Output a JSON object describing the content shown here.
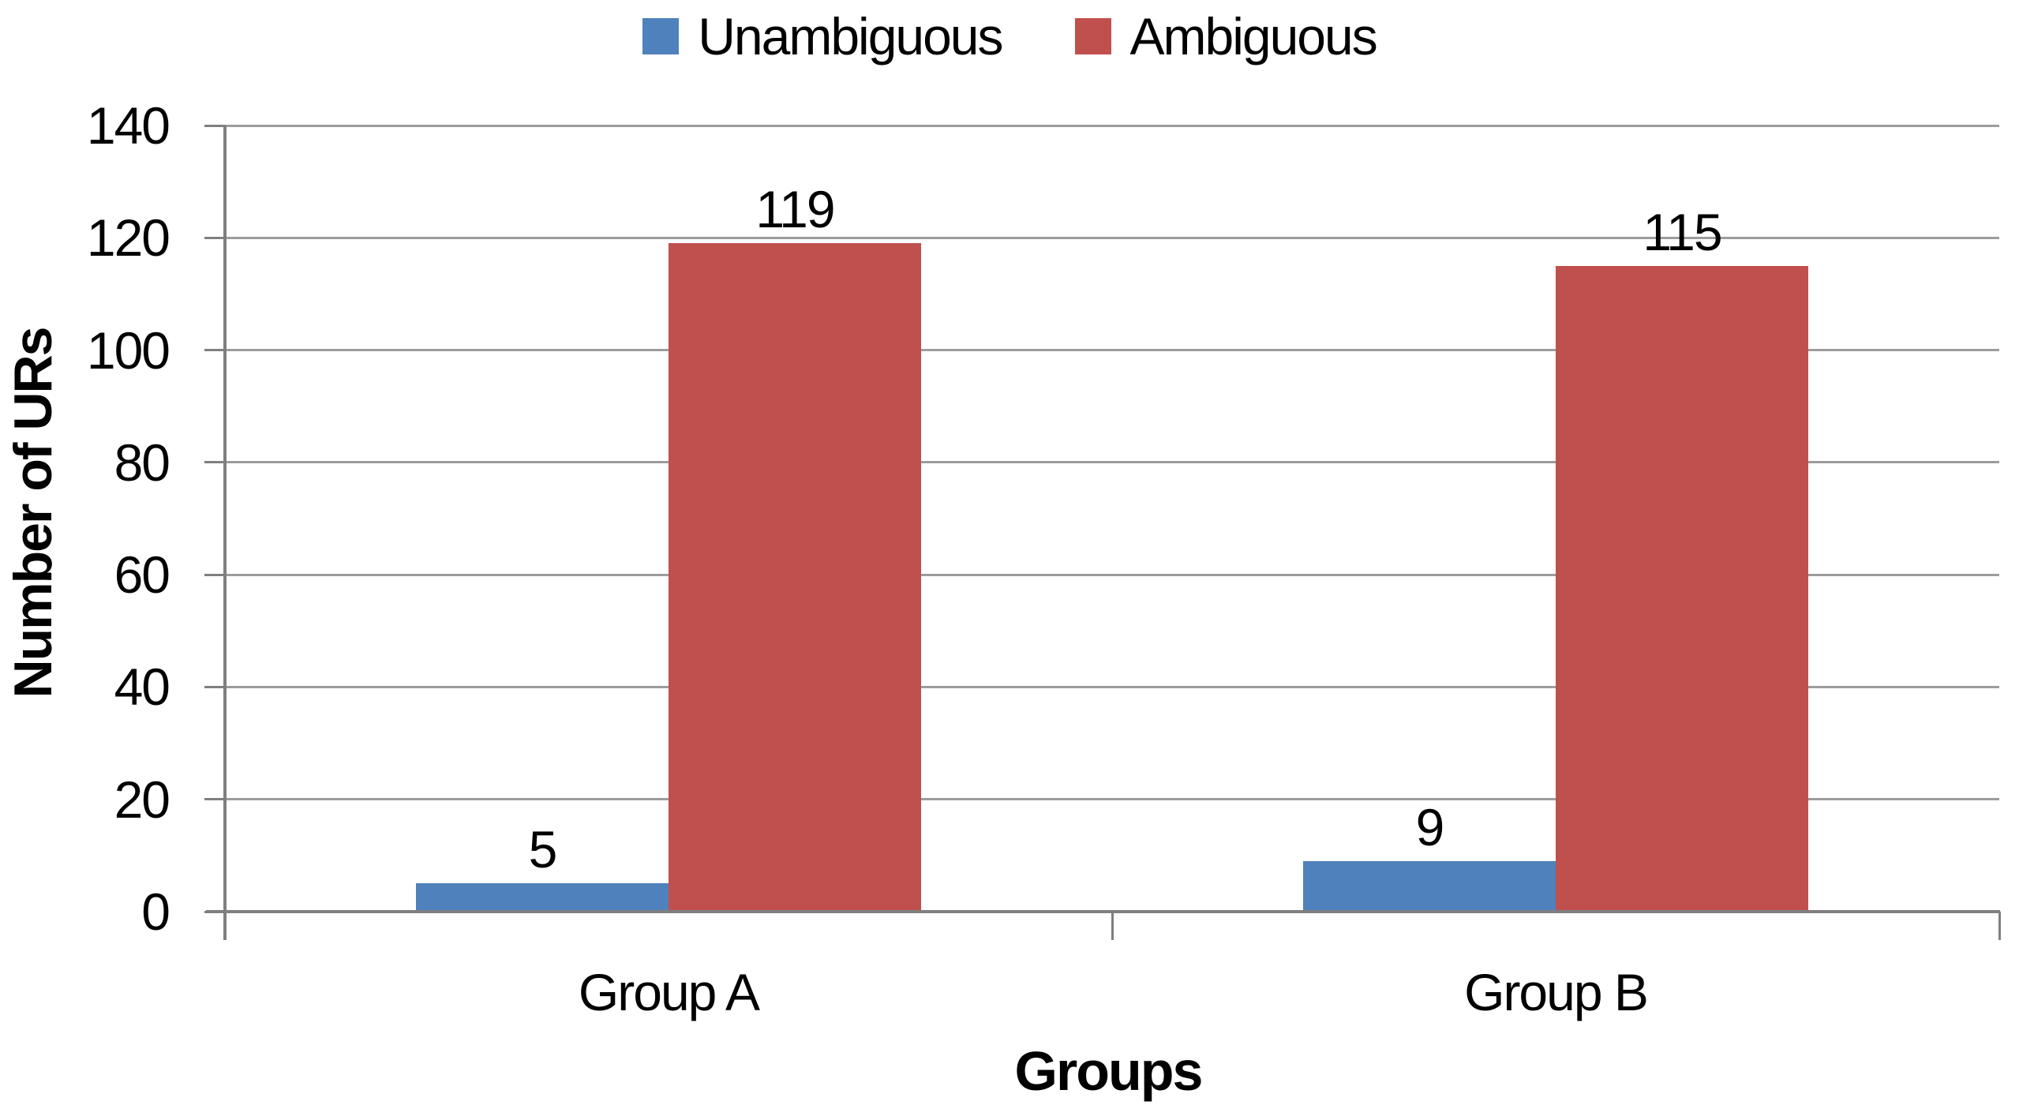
{
  "chart_data": {
    "type": "bar",
    "title": "",
    "categories": [
      "Group A",
      "Group B"
    ],
    "series": [
      {
        "name": "Unambiguous",
        "color": "#4F81BD",
        "values": [
          5,
          9
        ]
      },
      {
        "name": "Ambiguous",
        "color": "#C0504D",
        "values": [
          119,
          115
        ]
      }
    ],
    "xlabel": "Groups",
    "ylabel": "Number of URs",
    "ylim": [
      0,
      140
    ],
    "yticks": [
      0,
      20,
      40,
      60,
      80,
      100,
      120,
      140
    ],
    "grid": "horizontal",
    "legend_position": "top-center",
    "bar_labels_visible": true
  },
  "style": {
    "grid_color": "#9C9C9C",
    "axis_color": "#7F7F7F",
    "text_color": "#000000",
    "background": "#FFFFFF"
  }
}
